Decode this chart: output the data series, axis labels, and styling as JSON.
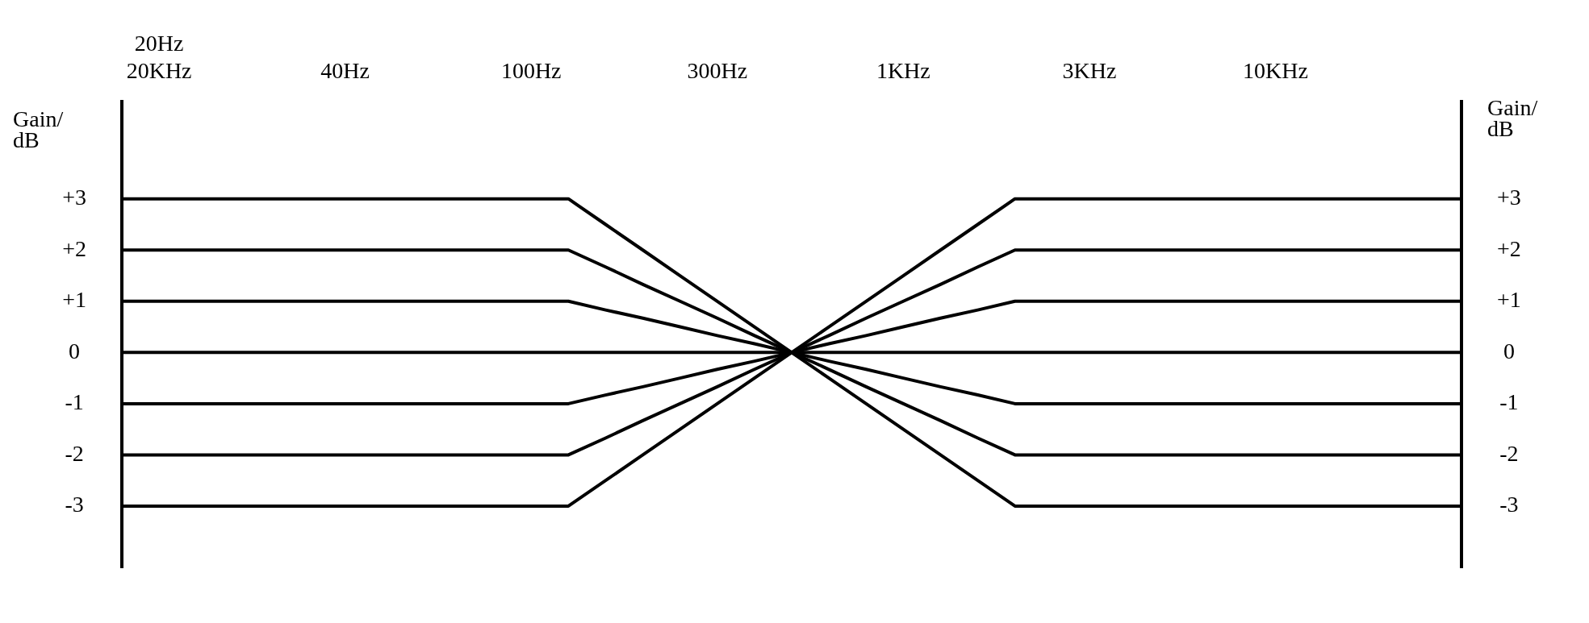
{
  "chart_data": {
    "type": "line",
    "ylabel": "Gain/\ndB",
    "y2label": "Gain/\ndB",
    "categories": [
      null,
      "20Hz\n20KHz",
      null,
      null,
      null,
      null,
      "40Hz",
      null,
      null,
      null,
      null,
      "100Hz",
      null,
      null,
      null,
      null,
      "300Hz",
      null,
      null,
      null,
      null,
      "1KHz",
      null,
      null,
      null,
      null,
      "3KHz",
      null,
      null,
      null,
      null,
      "10KHz",
      null,
      null,
      null,
      null,
      null
    ],
    "series": [
      {
        "color": "#000000",
        "values": [
          3,
          3,
          3,
          3,
          3,
          3,
          3,
          3,
          3,
          3,
          3,
          3,
          3,
          2.5,
          2,
          1.5,
          1,
          0.5,
          0,
          -0.5,
          -1,
          -1.5,
          -2,
          -2.5,
          -3,
          -3,
          -3,
          -3,
          -3,
          -3,
          -3,
          -3,
          -3,
          -3,
          -3,
          -3,
          -3
        ]
      },
      {
        "color": "#000000",
        "values": [
          2,
          2,
          2,
          2,
          2,
          2,
          2,
          2,
          2,
          2,
          2,
          2,
          2,
          1.67,
          1.33,
          1,
          0.67,
          0.33,
          0,
          -0.33,
          -0.67,
          -1,
          -1.33,
          -1.67,
          -2,
          -2,
          -2,
          -2,
          -2,
          -2,
          -2,
          -2,
          -2,
          -2,
          -2,
          -2,
          -2
        ]
      },
      {
        "color": "#000000",
        "values": [
          1,
          1,
          1,
          1,
          1,
          1,
          1,
          1,
          1,
          1,
          1,
          1,
          1,
          0.83,
          0.67,
          0.5,
          0.33,
          0.17,
          0,
          -0.17,
          -0.33,
          -0.5,
          -0.67,
          -0.83,
          -1,
          -1,
          -1,
          -1,
          -1,
          -1,
          -1,
          -1,
          -1,
          -1,
          -1,
          -1,
          -1
        ]
      },
      {
        "color": "#000000",
        "values": [
          0,
          0,
          0,
          0,
          0,
          0,
          0,
          0,
          0,
          0,
          0,
          0,
          0,
          0,
          0,
          0,
          0,
          0,
          0,
          0,
          0,
          0,
          0,
          0,
          0,
          0,
          0,
          0,
          0,
          0,
          0,
          0,
          0,
          0,
          0,
          0,
          0
        ]
      },
      {
        "color": "#000000",
        "values": [
          -1,
          -1,
          -1,
          -1,
          -1,
          -1,
          -1,
          -1,
          -1,
          -1,
          -1,
          -1,
          -1,
          -0.83,
          -0.67,
          -0.5,
          -0.33,
          -0.17,
          0,
          0.17,
          0.33,
          0.5,
          0.67,
          0.83,
          1,
          1,
          1,
          1,
          1,
          1,
          1,
          1,
          1,
          1,
          1,
          1,
          1
        ]
      },
      {
        "color": "#000000",
        "values": [
          -2,
          -2,
          -2,
          -2,
          -2,
          -2,
          -2,
          -2,
          -2,
          -2,
          -2,
          -2,
          -2,
          -1.67,
          -1.33,
          -1,
          -0.67,
          -0.33,
          0,
          0.33,
          0.67,
          1,
          1.33,
          1.67,
          2,
          2,
          2,
          2,
          2,
          2,
          2,
          2,
          2,
          2,
          2,
          2,
          2
        ]
      },
      {
        "color": "#000000",
        "values": [
          -3,
          -3,
          -3,
          -3,
          -3,
          -3,
          -3,
          -3,
          -3,
          -3,
          -3,
          -3,
          -3,
          -2.5,
          -2,
          -1.5,
          -1,
          -0.5,
          0,
          0.5,
          1,
          1.5,
          2,
          2.5,
          3,
          3,
          3,
          3,
          3,
          3,
          3,
          3,
          3,
          3,
          3,
          3,
          3
        ]
      }
    ],
    "ylim": [
      -4.2,
      4.9
    ],
    "yticks": [
      {
        "value": 3,
        "label": "+3"
      },
      {
        "value": 2,
        "label": "+2"
      },
      {
        "value": 1,
        "label": "+1"
      },
      0,
      -1,
      -2,
      -3
    ],
    "y2lim": [
      -4.2,
      4.9
    ],
    "y2ticks": [
      {
        "value": 3,
        "label": "+3"
      },
      {
        "value": 2,
        "label": "+2"
      },
      {
        "value": 1,
        "label": "+1"
      },
      0,
      -1,
      -2,
      -3
    ],
    "grid": false,
    "legend": false,
    "marker": "none",
    "line_style": "solid"
  }
}
